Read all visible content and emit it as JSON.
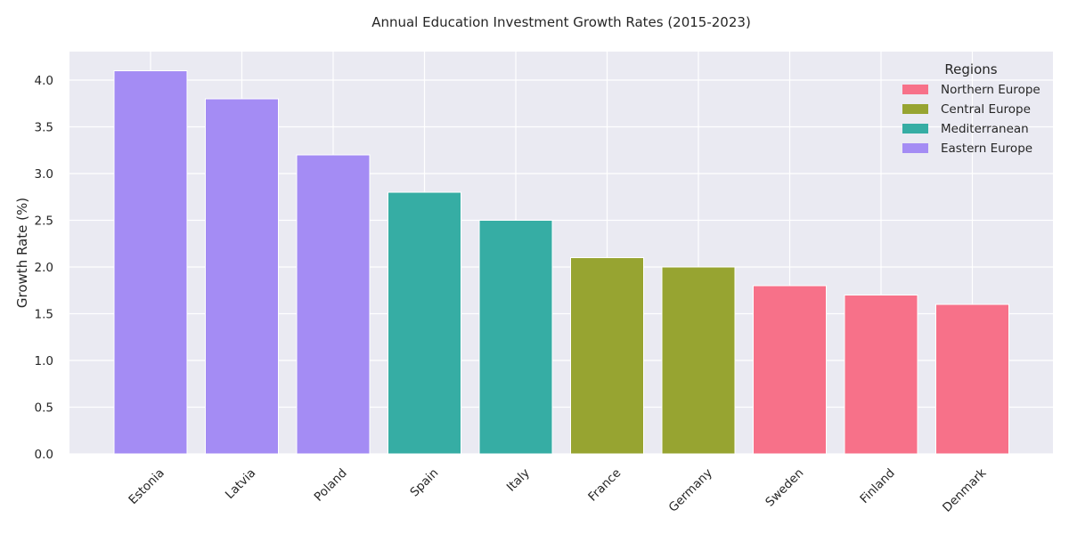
{
  "chart_data": {
    "type": "bar",
    "title": "Annual Education Investment Growth Rates (2015-2023)",
    "xlabel": "",
    "ylabel": "Growth Rate (%)",
    "ylim": [
      0,
      4.305
    ],
    "yticks": [
      "0.0",
      "0.5",
      "1.0",
      "1.5",
      "2.0",
      "2.5",
      "3.0",
      "3.5",
      "4.0"
    ],
    "categories": [
      "Estonia",
      "Latvia",
      "Poland",
      "Spain",
      "Italy",
      "France",
      "Germany",
      "Sweden",
      "Finland",
      "Denmark"
    ],
    "values": [
      4.1,
      3.8,
      3.2,
      2.8,
      2.5,
      2.1,
      2.0,
      1.8,
      1.7,
      1.6
    ],
    "bar_regions": [
      "Eastern Europe",
      "Eastern Europe",
      "Eastern Europe",
      "Mediterranean",
      "Mediterranean",
      "Central Europe",
      "Central Europe",
      "Northern Europe",
      "Northern Europe",
      "Northern Europe"
    ],
    "grid": true,
    "background": "#eaeaf2",
    "legend": {
      "title": "Regions",
      "placement": "top-right",
      "entries": [
        {
          "name": "Northern Europe",
          "color": "#f77189"
        },
        {
          "name": "Central Europe",
          "color": "#97a431"
        },
        {
          "name": "Mediterranean",
          "color": "#36ada4"
        },
        {
          "name": "Eastern Europe",
          "color": "#a48cf4"
        }
      ]
    }
  }
}
